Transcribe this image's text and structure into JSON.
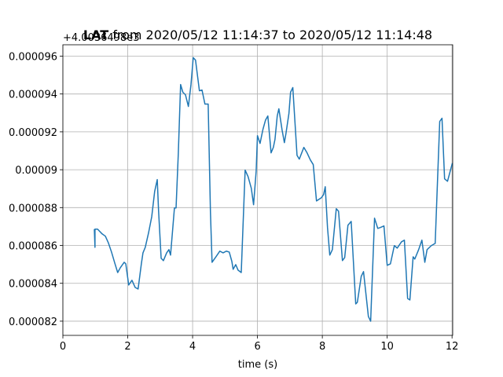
{
  "chart_data": {
    "type": "line",
    "title": [
      "LAT",
      "from 2020/05/12 11:14:37 to 2020/05/12 11:14:48"
    ],
    "offset_text": "+4.0036498e3",
    "x_label": "time (s)",
    "xlim": [
      0,
      12.02
    ],
    "xticks": [
      0,
      2,
      4,
      6,
      8,
      10,
      12
    ],
    "ylim": [
      8.125e-05,
      9.66e-05
    ],
    "yticks": [
      8.2e-05,
      8.4e-05,
      8.6e-05,
      8.8e-05,
      9e-05,
      9.2e-05,
      9.4e-05,
      9.6e-05
    ],
    "grid": true,
    "series": [
      {
        "color": "#1f77b4",
        "x": [
          0.97,
          0.99,
          0.99,
          1.07,
          1.21,
          1.31,
          1.4,
          1.5,
          1.6,
          1.69,
          1.77,
          1.89,
          1.94,
          2.03,
          2.13,
          2.23,
          2.32,
          2.42,
          2.47,
          2.54,
          2.64,
          2.74,
          2.83,
          2.91,
          2.95,
          3.03,
          3.1,
          3.2,
          3.27,
          3.32,
          3.39,
          3.44,
          3.49,
          3.56,
          3.63,
          3.7,
          3.78,
          3.87,
          3.95,
          4.02,
          4.09,
          4.21,
          4.29,
          4.38,
          4.48,
          4.55,
          4.6,
          4.72,
          4.84,
          4.94,
          5.04,
          5.13,
          5.21,
          5.25,
          5.33,
          5.4,
          5.5,
          5.62,
          5.71,
          5.81,
          5.88,
          5.96,
          6.0,
          6.08,
          6.17,
          6.25,
          6.32,
          6.42,
          6.49,
          6.54,
          6.61,
          6.66,
          6.76,
          6.83,
          6.88,
          6.97,
          7.02,
          7.09,
          7.22,
          7.29,
          7.43,
          7.53,
          7.63,
          7.72,
          7.82,
          7.97,
          8.04,
          8.09,
          8.16,
          8.23,
          8.31,
          8.43,
          8.5,
          8.62,
          8.69,
          8.79,
          8.89,
          9.03,
          9.08,
          9.2,
          9.27,
          9.42,
          9.49,
          9.61,
          9.71,
          9.78,
          9.9,
          10.0,
          10.1,
          10.22,
          10.31,
          10.44,
          10.53,
          10.63,
          10.7,
          10.8,
          10.85,
          10.97,
          11.07,
          11.16,
          11.23,
          11.36,
          11.48,
          11.62,
          11.69,
          11.77,
          11.86,
          12.01
        ],
        "values": [
          8.686e-05,
          8.59e-05,
          8.686e-05,
          8.686e-05,
          8.661e-05,
          8.649e-05,
          8.615e-05,
          8.565e-05,
          8.507e-05,
          8.457e-05,
          8.482e-05,
          8.511e-05,
          8.503e-05,
          8.391e-05,
          8.416e-05,
          8.378e-05,
          8.37e-05,
          8.503e-05,
          8.561e-05,
          8.59e-05,
          8.665e-05,
          8.752e-05,
          8.885e-05,
          8.948e-05,
          8.786e-05,
          8.532e-05,
          8.52e-05,
          8.561e-05,
          8.578e-05,
          8.549e-05,
          8.694e-05,
          8.798e-05,
          8.798e-05,
          9.089e-05,
          9.45e-05,
          9.409e-05,
          9.396e-05,
          9.334e-05,
          9.45e-05,
          9.592e-05,
          9.579e-05,
          9.417e-05,
          9.421e-05,
          9.347e-05,
          9.347e-05,
          8.777e-05,
          8.511e-05,
          8.54e-05,
          8.57e-05,
          8.561e-05,
          8.57e-05,
          8.565e-05,
          8.516e-05,
          8.474e-05,
          8.499e-05,
          8.47e-05,
          8.457e-05,
          8.998e-05,
          8.964e-05,
          8.902e-05,
          8.815e-05,
          8.993e-05,
          9.18e-05,
          9.139e-05,
          9.214e-05,
          9.263e-05,
          9.284e-05,
          9.089e-05,
          9.118e-05,
          9.16e-05,
          9.284e-05,
          9.322e-05,
          9.209e-05,
          9.143e-05,
          9.193e-05,
          9.297e-05,
          9.409e-05,
          9.434e-05,
          9.076e-05,
          9.056e-05,
          9.118e-05,
          9.089e-05,
          9.052e-05,
          9.027e-05,
          8.835e-05,
          8.852e-05,
          8.869e-05,
          8.91e-05,
          8.694e-05,
          8.549e-05,
          8.578e-05,
          8.794e-05,
          8.781e-05,
          8.52e-05,
          8.536e-05,
          8.707e-05,
          8.727e-05,
          8.291e-05,
          8.3e-05,
          8.437e-05,
          8.462e-05,
          8.225e-05,
          8.2e-05,
          8.744e-05,
          8.69e-05,
          8.694e-05,
          8.703e-05,
          8.495e-05,
          8.503e-05,
          8.599e-05,
          8.586e-05,
          8.619e-05,
          8.628e-05,
          8.32e-05,
          8.312e-05,
          8.54e-05,
          8.528e-05,
          8.578e-05,
          8.628e-05,
          8.511e-05,
          8.578e-05,
          8.599e-05,
          8.611e-05,
          9.255e-05,
          9.272e-05,
          8.952e-05,
          8.939e-05,
          9.035e-05
        ]
      }
    ]
  }
}
